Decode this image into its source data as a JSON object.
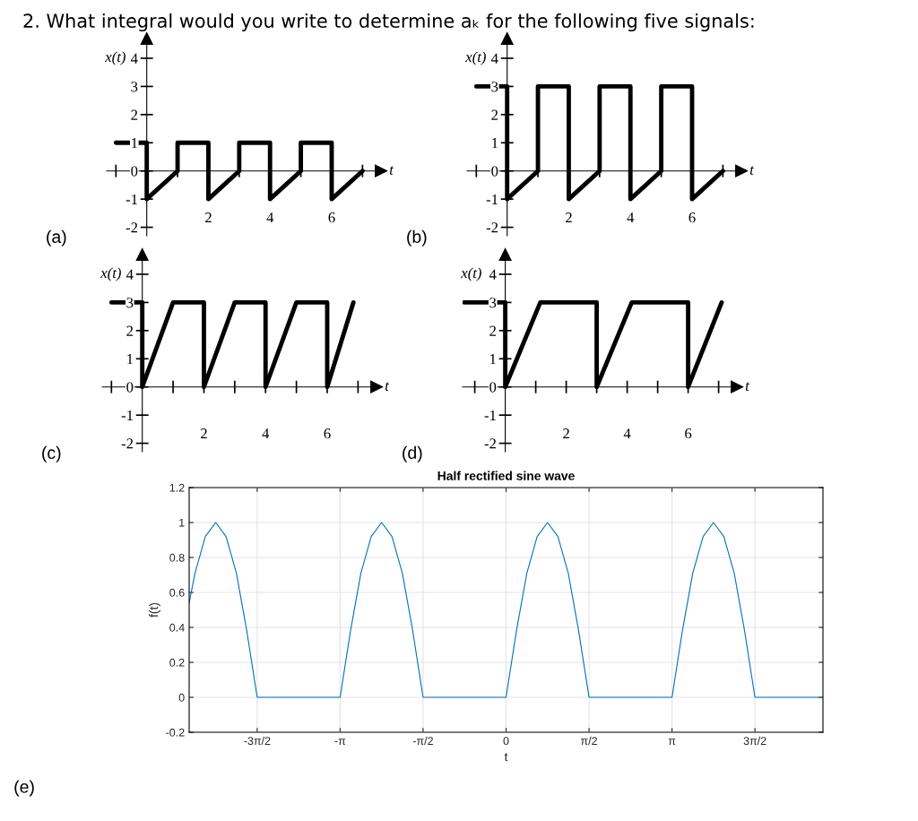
{
  "chart_data": [
    {
      "type": "line",
      "title": "2. What integral would you write to determine aₖ for the following five signals:",
      "xlabel": "t",
      "ylabel": "x(t)",
      "annotations": [
        "(a)"
      ],
      "line_style": "solid",
      "xlim": [
        -1.3,
        7.6
      ],
      "ylim": [
        -2.3,
        4.7
      ],
      "xticks": [
        {
          "value": -1,
          "label": null
        },
        {
          "value": 1,
          "label": null
        },
        2,
        {
          "value": 3,
          "label": null
        },
        4,
        {
          "value": 5,
          "label": null
        },
        6,
        {
          "value": 7,
          "label": null
        }
      ],
      "yticks": [
        -2,
        -1,
        0,
        1,
        2,
        3,
        4
      ],
      "series": [
        {
          "color": "#000000",
          "x": [
            -1,
            0,
            0,
            1,
            1,
            2,
            2,
            3,
            3,
            4,
            4,
            5,
            5,
            6,
            6,
            7
          ],
          "values": [
            1,
            1,
            -1,
            0,
            1,
            1,
            -1,
            0,
            1,
            1,
            -1,
            0,
            1,
            1,
            -1,
            0
          ]
        }
      ]
    },
    {
      "type": "line",
      "xlabel": "t",
      "ylabel": "x(t)",
      "annotations": [
        "(b)"
      ],
      "line_style": "solid",
      "xlim": [
        -1.3,
        7.6
      ],
      "ylim": [
        -2.3,
        4.7
      ],
      "xticks": [
        {
          "value": -1,
          "label": null
        },
        {
          "value": 1,
          "label": null
        },
        2,
        {
          "value": 3,
          "label": null
        },
        4,
        {
          "value": 5,
          "label": null
        },
        6,
        {
          "value": 7,
          "label": null
        }
      ],
      "yticks": [
        -2,
        -1,
        0,
        1,
        2,
        3,
        4
      ],
      "series": [
        {
          "color": "#000000",
          "x": [
            -1,
            0,
            0,
            1,
            1,
            2,
            2,
            3,
            3,
            4,
            4,
            5,
            5,
            6,
            6,
            7
          ],
          "values": [
            3,
            3,
            -1,
            0,
            3,
            3,
            -1,
            0,
            3,
            3,
            -1,
            0,
            3,
            3,
            -1,
            0
          ]
        }
      ]
    },
    {
      "type": "line",
      "xlabel": "t",
      "ylabel": "x(t)",
      "annotations": [
        "(c)"
      ],
      "line_style": "solid",
      "xlim": [
        -1.3,
        7.6
      ],
      "ylim": [
        -2.3,
        4.7
      ],
      "xticks": [
        {
          "value": -1,
          "label": null
        },
        {
          "value": 1,
          "label": null
        },
        2,
        {
          "value": 3,
          "label": null
        },
        4,
        {
          "value": 5,
          "label": null
        },
        6,
        {
          "value": 7,
          "label": null
        }
      ],
      "yticks": [
        -2,
        -1,
        0,
        1,
        2,
        3,
        4
      ],
      "series": [
        {
          "color": "#000000",
          "x": [
            -1,
            0,
            0,
            1,
            2,
            2,
            3,
            4,
            4,
            5,
            6,
            6,
            6.85
          ],
          "values": [
            3,
            3,
            0,
            3,
            3,
            0,
            3,
            3,
            0,
            3,
            3,
            0,
            3
          ]
        }
      ]
    },
    {
      "type": "line",
      "xlabel": "t",
      "ylabel": "x(t)",
      "annotations": [
        "(d)"
      ],
      "line_style": "solid",
      "xlim": [
        -1.4,
        7.6
      ],
      "ylim": [
        -2.3,
        4.7
      ],
      "xticks": [
        {
          "value": -1,
          "label": null
        },
        {
          "value": 1,
          "label": null
        },
        2,
        {
          "value": 3,
          "label": null
        },
        4,
        {
          "value": 5,
          "label": null
        },
        6,
        {
          "value": 7,
          "label": null
        }
      ],
      "yticks": [
        -2,
        -1,
        0,
        1,
        2,
        3,
        4
      ],
      "series": [
        {
          "color": "#000000",
          "x": [
            -1.35,
            0,
            0,
            1.15,
            3,
            3,
            4.15,
            6,
            6,
            7.1
          ],
          "values": [
            3,
            3,
            0,
            3,
            3,
            0,
            3,
            3,
            0,
            3
          ]
        }
      ]
    },
    {
      "type": "line",
      "title": "Half rectified sine wave",
      "xlabel": "t",
      "ylabel": "f(t)",
      "annotations": [
        "(e)"
      ],
      "line_style": "solid",
      "grid": true,
      "xlim": [
        -6,
        6
      ],
      "ylim": [
        -0.2,
        1.2
      ],
      "xticks": [
        {
          "value": -4.712,
          "label": "-3π/2"
        },
        {
          "value": -3.142,
          "label": "-π"
        },
        {
          "value": -1.571,
          "label": "-π/2"
        },
        0,
        {
          "value": 1.571,
          "label": "π/2"
        },
        {
          "value": 3.142,
          "label": "π"
        },
        {
          "value": 4.712,
          "label": "3π/2"
        }
      ],
      "yticks": [
        -0.2,
        0,
        0.2,
        0.4,
        0.6,
        0.8,
        1,
        1.2
      ],
      "series": [
        {
          "color": "#0072bd",
          "x": [
            -6,
            -5.89,
            -5.694,
            -5.498,
            -5.301,
            -5.105,
            -4.909,
            -4.712,
            -3.142,
            -2.945,
            -2.749,
            -2.553,
            -2.356,
            -2.16,
            -1.963,
            -1.767,
            -1.571,
            0,
            0.196,
            0.393,
            0.589,
            0.785,
            0.982,
            1.178,
            1.374,
            1.571,
            3.142,
            3.338,
            3.534,
            3.731,
            3.927,
            4.123,
            4.32,
            4.516,
            4.712,
            6
          ],
          "values": [
            0.54,
            0.71,
            0.92,
            1,
            0.92,
            0.71,
            0.38,
            0,
            0,
            0.38,
            0.71,
            0.92,
            1,
            0.92,
            0.71,
            0.38,
            0,
            0,
            0.38,
            0.71,
            0.92,
            1,
            0.92,
            0.71,
            0.38,
            0,
            0,
            0.38,
            0.71,
            0.92,
            1,
            0.92,
            0.71,
            0.38,
            0,
            0
          ]
        }
      ]
    }
  ]
}
